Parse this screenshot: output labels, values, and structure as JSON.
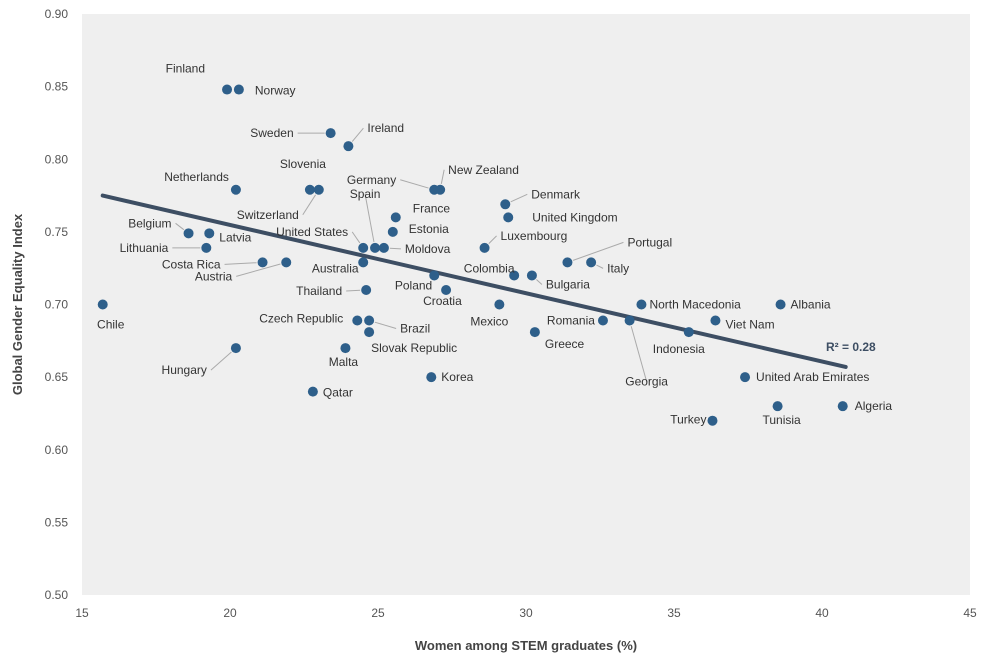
{
  "chart_data": {
    "type": "scatter",
    "title": "",
    "xlabel": "Women among STEM graduates (%)",
    "ylabel": "Global Gender Equality Index",
    "xlim": [
      15,
      45
    ],
    "ylim": [
      0.5,
      0.9
    ],
    "xticks": [
      "15",
      "20",
      "25",
      "30",
      "35",
      "40",
      "45"
    ],
    "yticks": [
      "0.50",
      "0.55",
      "0.60",
      "0.65",
      "0.70",
      "0.75",
      "0.80",
      "0.85",
      "0.90"
    ],
    "grid": false,
    "colors": {
      "plot_background": "#efefef",
      "point": "#2e5f8a",
      "trend": "#3d4e63"
    },
    "trendline": {
      "x": [
        15.7,
        40.8
      ],
      "y": [
        0.775,
        0.657
      ],
      "label": "R² = 0.28"
    },
    "points": [
      {
        "name": "Finland",
        "x": 19.9,
        "y": 0.848
      },
      {
        "name": "Norway",
        "x": 20.3,
        "y": 0.848
      },
      {
        "name": "Sweden",
        "x": 23.4,
        "y": 0.818
      },
      {
        "name": "Ireland",
        "x": 24.0,
        "y": 0.809
      },
      {
        "name": "Slovenia",
        "x": 22.7,
        "y": 0.779
      },
      {
        "name": "Switzerland",
        "x": 23.0,
        "y": 0.779
      },
      {
        "name": "Netherlands",
        "x": 20.2,
        "y": 0.779
      },
      {
        "name": "Germany",
        "x": 26.9,
        "y": 0.779
      },
      {
        "name": "New Zealand",
        "x": 27.1,
        "y": 0.779
      },
      {
        "name": "Denmark",
        "x": 29.3,
        "y": 0.769
      },
      {
        "name": "United Kingdom",
        "x": 29.4,
        "y": 0.76
      },
      {
        "name": "France",
        "x": 25.6,
        "y": 0.76
      },
      {
        "name": "Estonia",
        "x": 25.5,
        "y": 0.75
      },
      {
        "name": "Belgium",
        "x": 18.6,
        "y": 0.749
      },
      {
        "name": "Latvia",
        "x": 19.3,
        "y": 0.749
      },
      {
        "name": "Lithuania",
        "x": 19.2,
        "y": 0.739
      },
      {
        "name": "United States",
        "x": 24.5,
        "y": 0.739
      },
      {
        "name": "Spain",
        "x": 24.9,
        "y": 0.739
      },
      {
        "name": "Moldova",
        "x": 25.2,
        "y": 0.739
      },
      {
        "name": "Luxembourg",
        "x": 28.6,
        "y": 0.739
      },
      {
        "name": "Costa Rica",
        "x": 21.1,
        "y": 0.729
      },
      {
        "name": "Austria",
        "x": 21.9,
        "y": 0.729
      },
      {
        "name": "Australia",
        "x": 24.5,
        "y": 0.729
      },
      {
        "name": "Portugal",
        "x": 31.4,
        "y": 0.729
      },
      {
        "name": "Italy",
        "x": 32.2,
        "y": 0.729
      },
      {
        "name": "Colombia",
        "x": 29.6,
        "y": 0.72
      },
      {
        "name": "Bulgaria",
        "x": 30.2,
        "y": 0.72
      },
      {
        "name": "Poland",
        "x": 26.9,
        "y": 0.72
      },
      {
        "name": "Croatia",
        "x": 27.3,
        "y": 0.71
      },
      {
        "name": "Thailand",
        "x": 24.6,
        "y": 0.71
      },
      {
        "name": "Chile",
        "x": 15.7,
        "y": 0.7
      },
      {
        "name": "Mexico",
        "x": 29.1,
        "y": 0.7
      },
      {
        "name": "North Macedonia",
        "x": 33.9,
        "y": 0.7
      },
      {
        "name": "Albania",
        "x": 38.6,
        "y": 0.7
      },
      {
        "name": "Czech Republic",
        "x": 24.3,
        "y": 0.689
      },
      {
        "name": "Brazil",
        "x": 24.7,
        "y": 0.689
      },
      {
        "name": "Romania",
        "x": 32.6,
        "y": 0.689
      },
      {
        "name": "Georgia",
        "x": 33.5,
        "y": 0.689
      },
      {
        "name": "Viet Nam",
        "x": 36.4,
        "y": 0.689
      },
      {
        "name": "Slovak Republic",
        "x": 24.7,
        "y": 0.681
      },
      {
        "name": "Greece",
        "x": 30.3,
        "y": 0.681
      },
      {
        "name": "Indonesia",
        "x": 35.5,
        "y": 0.681
      },
      {
        "name": "Hungary",
        "x": 20.2,
        "y": 0.67
      },
      {
        "name": "Malta",
        "x": 23.9,
        "y": 0.67
      },
      {
        "name": "Korea",
        "x": 26.8,
        "y": 0.65
      },
      {
        "name": "United Arab Emirates",
        "x": 37.4,
        "y": 0.65
      },
      {
        "name": "Qatar",
        "x": 22.8,
        "y": 0.64
      },
      {
        "name": "Tunisia",
        "x": 38.5,
        "y": 0.63
      },
      {
        "name": "Algeria",
        "x": 40.7,
        "y": 0.63
      },
      {
        "name": "Turkey",
        "x": 36.3,
        "y": 0.62
      }
    ]
  }
}
